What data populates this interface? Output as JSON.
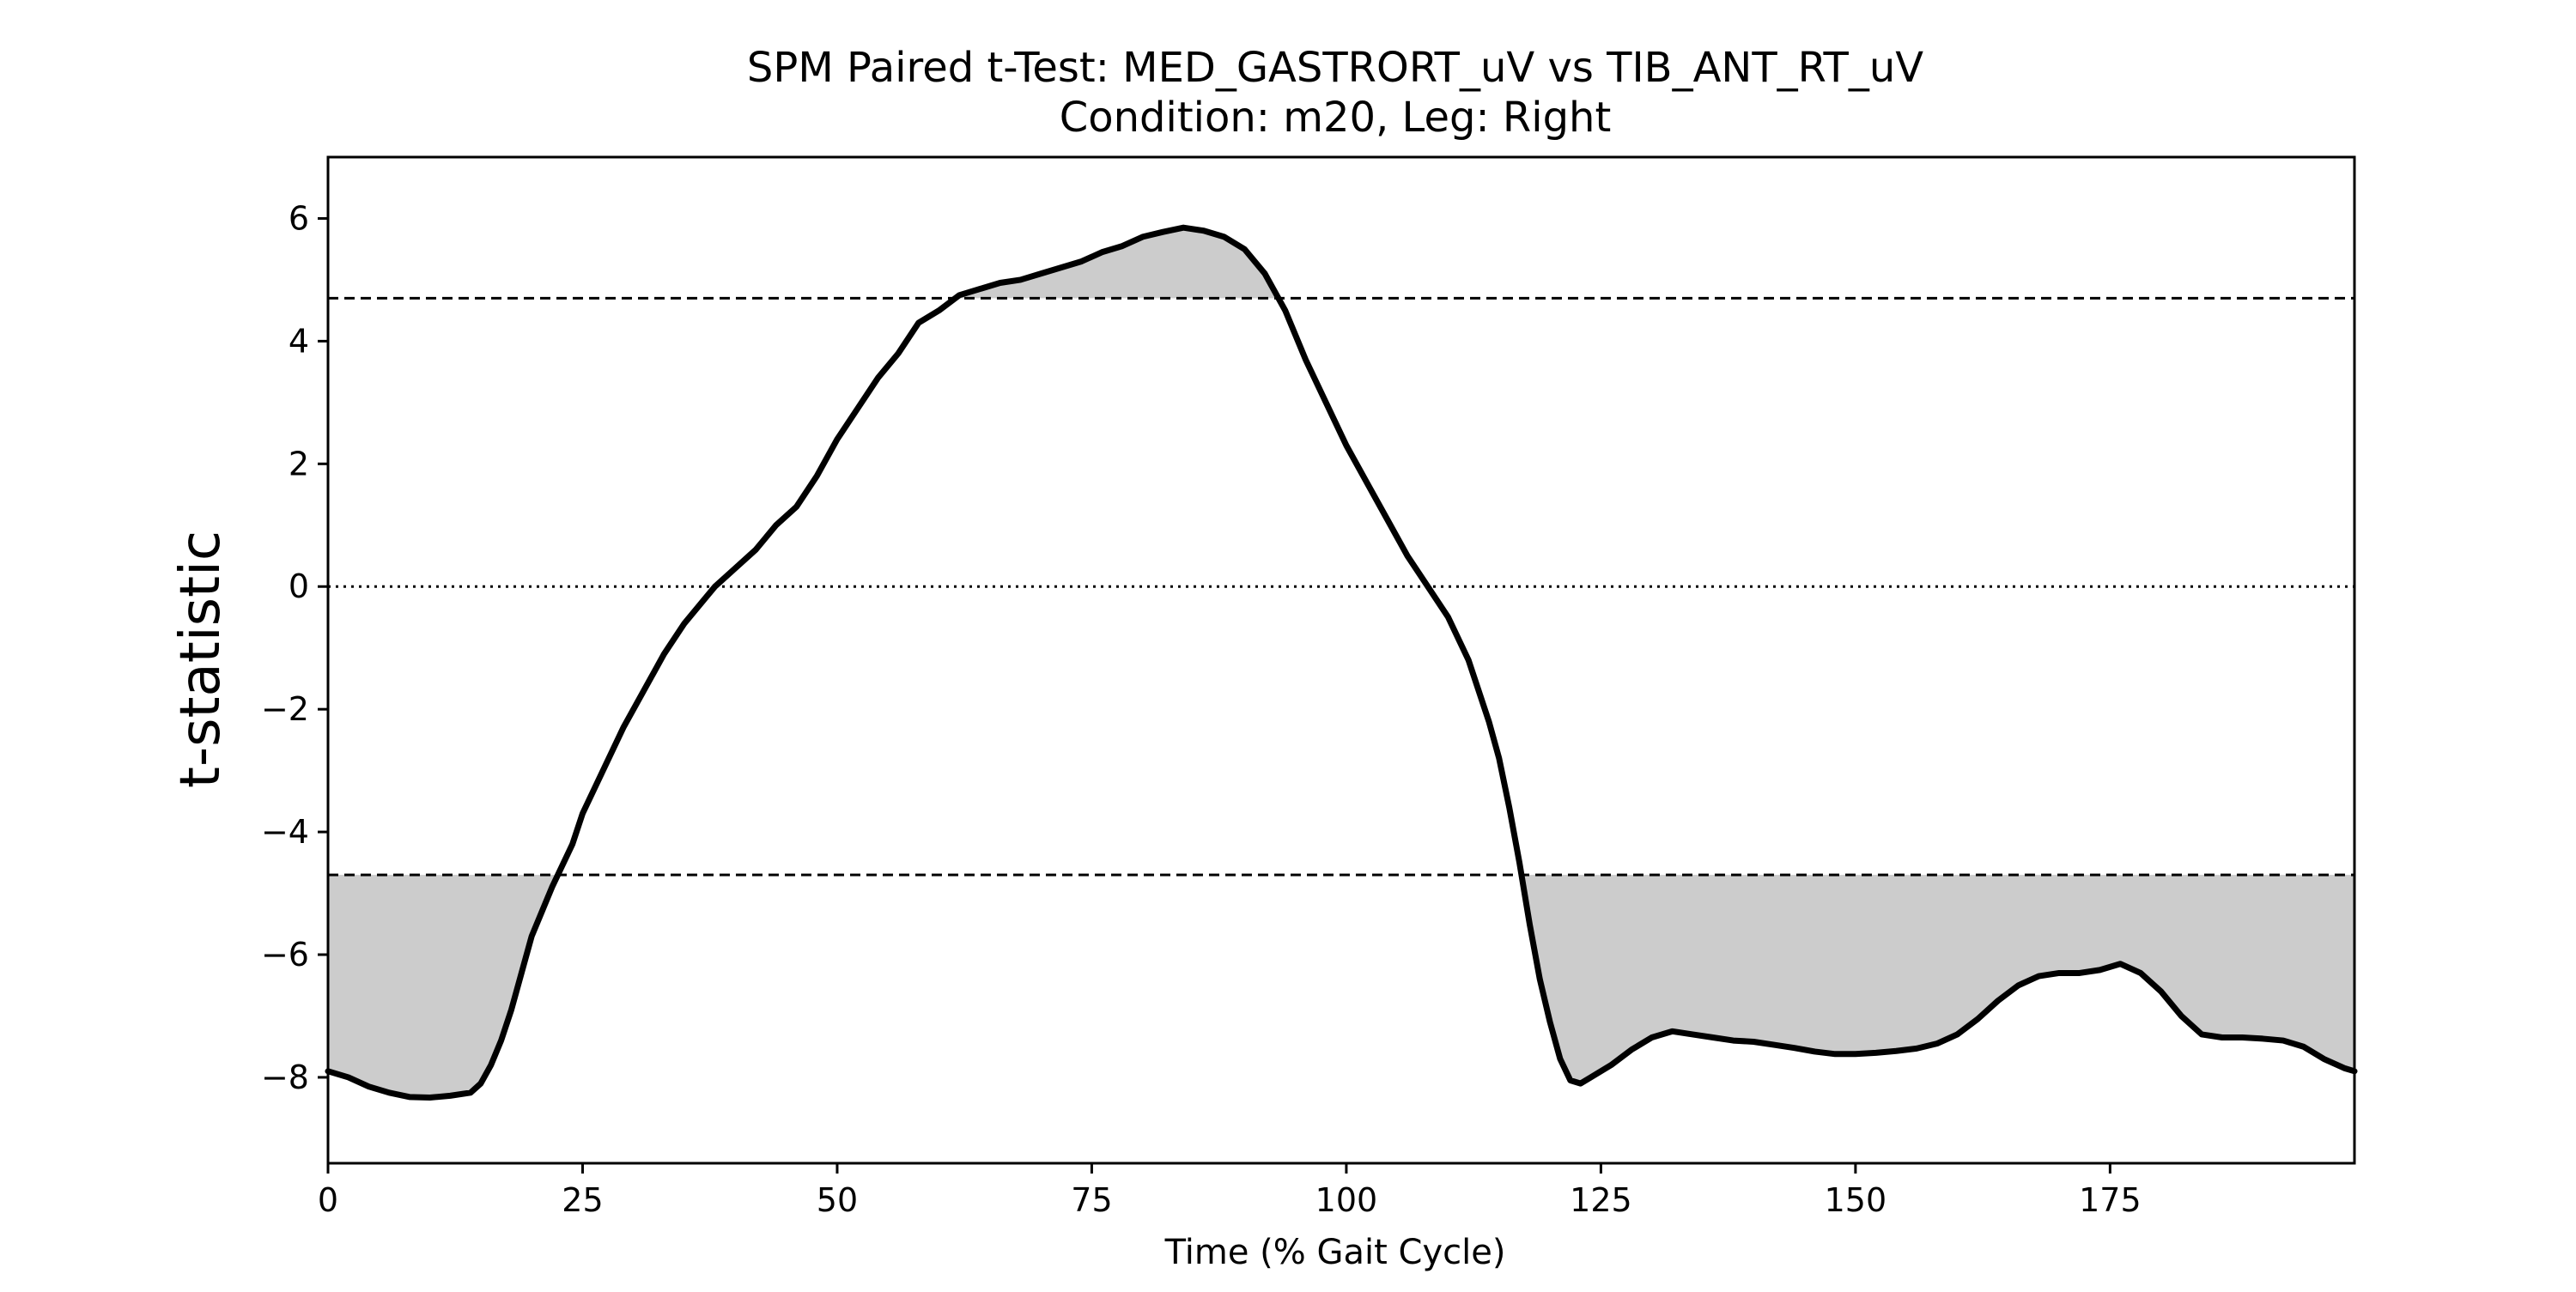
{
  "chart_data": {
    "type": "line",
    "title": "SPM Paired t-Test: MED_GASTRORT_uV vs TIB_ANT_RT_uV",
    "subtitle": "Condition: m20, Leg: Right",
    "xlabel": "Time (% Gait Cycle)",
    "ylabel": "t-statistic",
    "xlim": [
      0,
      199
    ],
    "ylim": [
      -9.4,
      7.0
    ],
    "x_ticks": [
      0,
      25,
      50,
      75,
      100,
      125,
      150,
      175
    ],
    "y_ticks": [
      6,
      4,
      2,
      0,
      -2,
      -4,
      -6,
      -8
    ],
    "x_tick_labels": [
      "0",
      "25",
      "50",
      "75",
      "100",
      "125",
      "150",
      "175"
    ],
    "y_tick_labels": [
      "6",
      "4",
      "2",
      "0",
      "−2",
      "−4",
      "−6",
      "−8"
    ],
    "grid": false,
    "threshold": 4.7,
    "threshold_lines": [
      4.7,
      -4.7
    ],
    "zero_line": 0,
    "colors": {
      "line": "#000000",
      "cluster_fill": "#cccccc",
      "frame": "#000000"
    },
    "series": [
      {
        "points": [
          [
            0,
            -7.9
          ],
          [
            2,
            -8.0
          ],
          [
            4,
            -8.15
          ],
          [
            6,
            -8.25
          ],
          [
            8,
            -8.32
          ],
          [
            10,
            -8.33
          ],
          [
            12,
            -8.3
          ],
          [
            14,
            -8.25
          ],
          [
            15,
            -8.1
          ],
          [
            16,
            -7.8
          ],
          [
            17,
            -7.4
          ],
          [
            18,
            -6.9
          ],
          [
            19,
            -6.3
          ],
          [
            20,
            -5.7
          ],
          [
            22,
            -4.9
          ],
          [
            24,
            -4.2
          ],
          [
            25,
            -3.7
          ],
          [
            27,
            -3.0
          ],
          [
            29,
            -2.3
          ],
          [
            31,
            -1.7
          ],
          [
            33,
            -1.1
          ],
          [
            35,
            -0.6
          ],
          [
            37,
            -0.2
          ],
          [
            38,
            0.0
          ],
          [
            40,
            0.3
          ],
          [
            42,
            0.6
          ],
          [
            44,
            1.0
          ],
          [
            46,
            1.3
          ],
          [
            48,
            1.8
          ],
          [
            50,
            2.4
          ],
          [
            52,
            2.9
          ],
          [
            54,
            3.4
          ],
          [
            56,
            3.8
          ],
          [
            58,
            4.3
          ],
          [
            60,
            4.5
          ],
          [
            62,
            4.75
          ],
          [
            64,
            4.85
          ],
          [
            66,
            4.95
          ],
          [
            68,
            5.0
          ],
          [
            70,
            5.1
          ],
          [
            72,
            5.2
          ],
          [
            74,
            5.3
          ],
          [
            76,
            5.45
          ],
          [
            78,
            5.55
          ],
          [
            80,
            5.7
          ],
          [
            82,
            5.78
          ],
          [
            84,
            5.85
          ],
          [
            86,
            5.8
          ],
          [
            88,
            5.7
          ],
          [
            90,
            5.5
          ],
          [
            92,
            5.1
          ],
          [
            94,
            4.5
          ],
          [
            96,
            3.7
          ],
          [
            98,
            3.0
          ],
          [
            100,
            2.3
          ],
          [
            102,
            1.7
          ],
          [
            104,
            1.1
          ],
          [
            106,
            0.5
          ],
          [
            108,
            0.0
          ],
          [
            110,
            -0.5
          ],
          [
            112,
            -1.2
          ],
          [
            114,
            -2.2
          ],
          [
            115,
            -2.8
          ],
          [
            116,
            -3.6
          ],
          [
            117,
            -4.5
          ],
          [
            118,
            -5.5
          ],
          [
            119,
            -6.4
          ],
          [
            120,
            -7.1
          ],
          [
            121,
            -7.7
          ],
          [
            122,
            -8.05
          ],
          [
            123,
            -8.1
          ],
          [
            124,
            -8.0
          ],
          [
            126,
            -7.8
          ],
          [
            128,
            -7.55
          ],
          [
            130,
            -7.35
          ],
          [
            132,
            -7.25
          ],
          [
            134,
            -7.3
          ],
          [
            136,
            -7.35
          ],
          [
            138,
            -7.4
          ],
          [
            140,
            -7.42
          ],
          [
            142,
            -7.47
          ],
          [
            144,
            -7.52
          ],
          [
            146,
            -7.58
          ],
          [
            148,
            -7.62
          ],
          [
            150,
            -7.62
          ],
          [
            152,
            -7.6
          ],
          [
            154,
            -7.57
          ],
          [
            156,
            -7.53
          ],
          [
            158,
            -7.45
          ],
          [
            160,
            -7.3
          ],
          [
            162,
            -7.05
          ],
          [
            164,
            -6.75
          ],
          [
            166,
            -6.5
          ],
          [
            168,
            -6.35
          ],
          [
            170,
            -6.3
          ],
          [
            172,
            -6.3
          ],
          [
            174,
            -6.25
          ],
          [
            176,
            -6.15
          ],
          [
            178,
            -6.3
          ],
          [
            180,
            -6.6
          ],
          [
            182,
            -7.0
          ],
          [
            184,
            -7.3
          ],
          [
            186,
            -7.35
          ],
          [
            188,
            -7.35
          ],
          [
            190,
            -7.37
          ],
          [
            192,
            -7.4
          ],
          [
            194,
            -7.5
          ],
          [
            196,
            -7.7
          ],
          [
            198,
            -7.85
          ],
          [
            199,
            -7.9
          ]
        ]
      }
    ]
  }
}
